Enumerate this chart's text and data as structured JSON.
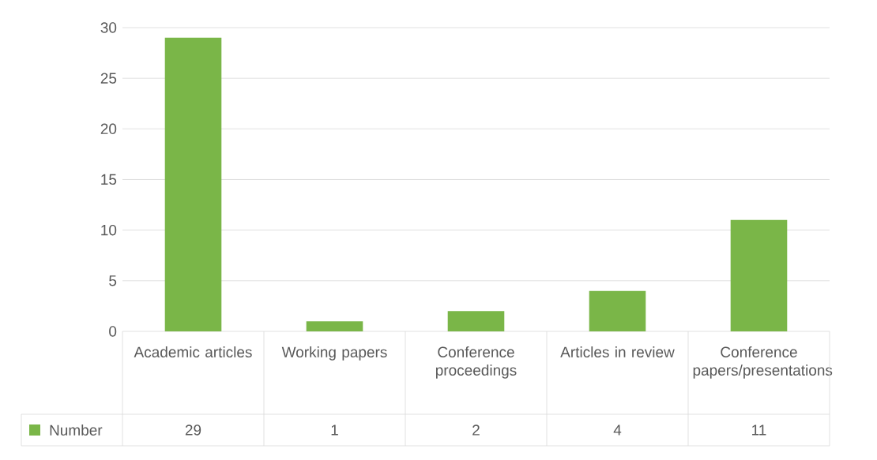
{
  "chart_data": {
    "type": "bar",
    "categories": [
      "Academic articles",
      "Working papers",
      "Conference proceedings",
      "Articles in review",
      "Conference papers/presentations"
    ],
    "series": [
      {
        "name": "Number",
        "color": "#7ab648",
        "values": [
          29,
          1,
          2,
          4,
          11
        ]
      }
    ],
    "ylim": [
      0,
      30
    ],
    "yticks": [
      0,
      5,
      10,
      15,
      20,
      25,
      30
    ],
    "grid": "y",
    "data_labels": true,
    "legend": "bottom"
  }
}
